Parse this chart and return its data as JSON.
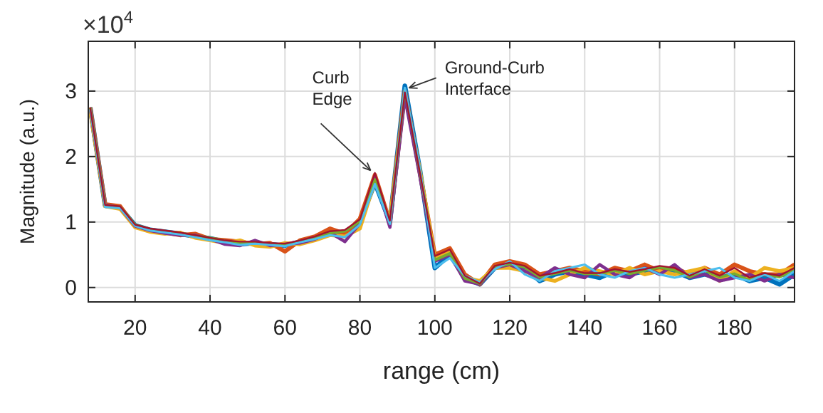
{
  "chart_data": {
    "type": "line",
    "xlabel": "range (cm)",
    "ylabel": "Magnitude (a.u.)",
    "x": [
      8,
      12,
      16,
      20,
      24,
      28,
      32,
      36,
      40,
      44,
      48,
      52,
      56,
      60,
      64,
      68,
      72,
      76,
      80,
      84,
      88,
      92,
      96,
      100,
      104,
      108,
      112,
      116,
      120,
      124,
      128,
      132,
      136,
      140,
      144,
      148,
      152,
      156,
      160,
      164,
      168,
      172,
      176,
      180,
      184,
      188,
      192,
      196
    ],
    "xlim": [
      7.5,
      196
    ],
    "ylim": [
      -0.22,
      3.76
    ],
    "xticks": [
      20,
      40,
      60,
      80,
      100,
      120,
      140,
      160,
      180
    ],
    "yticks": [
      0,
      1,
      2,
      3
    ],
    "grid": true,
    "marker": "none",
    "line_style": "solid",
    "series": [
      {
        "color": "#0072bd",
        "values": [
          2.75,
          1.25,
          1.22,
          0.95,
          0.88,
          0.85,
          0.82,
          0.78,
          0.75,
          0.7,
          0.66,
          0.68,
          0.66,
          0.64,
          0.7,
          0.75,
          0.82,
          0.8,
          1.0,
          1.6,
          1.0,
          3.08,
          1.8,
          0.3,
          0.5,
          0.15,
          0.05,
          0.3,
          0.35,
          0.3,
          0.1,
          0.2,
          0.25,
          0.2,
          0.15,
          0.25,
          0.2,
          0.25,
          0.3,
          0.25,
          0.15,
          0.2,
          0.15,
          0.2,
          0.1,
          0.15,
          0.05,
          0.2
        ]
      },
      {
        "color": "#d95319",
        "values": [
          2.75,
          1.27,
          1.24,
          0.93,
          0.86,
          0.84,
          0.8,
          0.82,
          0.74,
          0.72,
          0.7,
          0.66,
          0.68,
          0.55,
          0.72,
          0.78,
          0.9,
          0.82,
          1.05,
          1.72,
          1.0,
          3.0,
          1.75,
          0.5,
          0.6,
          0.2,
          0.05,
          0.35,
          0.4,
          0.35,
          0.2,
          0.25,
          0.3,
          0.25,
          0.2,
          0.3,
          0.25,
          0.35,
          0.25,
          0.3,
          0.2,
          0.3,
          0.2,
          0.35,
          0.25,
          0.2,
          0.2,
          0.35
        ]
      },
      {
        "color": "#edb120",
        "values": [
          2.7,
          1.24,
          1.2,
          0.92,
          0.85,
          0.82,
          0.84,
          0.76,
          0.72,
          0.68,
          0.72,
          0.64,
          0.62,
          0.68,
          0.66,
          0.72,
          0.8,
          0.78,
          0.9,
          1.62,
          1.02,
          2.95,
          1.8,
          0.45,
          0.55,
          0.15,
          0.1,
          0.3,
          0.3,
          0.25,
          0.15,
          0.1,
          0.2,
          0.3,
          0.25,
          0.2,
          0.3,
          0.2,
          0.25,
          0.2,
          0.25,
          0.3,
          0.1,
          0.25,
          0.15,
          0.3,
          0.25,
          0.3
        ]
      },
      {
        "color": "#7e2f8e",
        "values": [
          2.75,
          1.26,
          1.22,
          0.94,
          0.87,
          0.83,
          0.8,
          0.8,
          0.74,
          0.66,
          0.64,
          0.72,
          0.64,
          0.66,
          0.68,
          0.74,
          0.84,
          0.7,
          0.98,
          1.68,
          0.92,
          2.9,
          1.7,
          0.4,
          0.5,
          0.1,
          0.05,
          0.3,
          0.35,
          0.25,
          0.15,
          0.3,
          0.2,
          0.15,
          0.35,
          0.2,
          0.15,
          0.3,
          0.2,
          0.35,
          0.15,
          0.2,
          0.1,
          0.15,
          0.2,
          0.1,
          0.2,
          0.15
        ]
      },
      {
        "color": "#77ac30",
        "values": [
          2.75,
          1.25,
          1.23,
          0.96,
          0.89,
          0.86,
          0.83,
          0.79,
          0.76,
          0.71,
          0.67,
          0.69,
          0.67,
          0.65,
          0.71,
          0.76,
          0.83,
          0.86,
          1.01,
          1.65,
          0.98,
          3.02,
          1.78,
          0.42,
          0.52,
          0.14,
          0.06,
          0.31,
          0.36,
          0.31,
          0.16,
          0.21,
          0.26,
          0.21,
          0.21,
          0.26,
          0.21,
          0.26,
          0.31,
          0.26,
          0.16,
          0.26,
          0.16,
          0.21,
          0.11,
          0.21,
          0.16,
          0.26
        ]
      },
      {
        "color": "#4dbeee",
        "values": [
          2.72,
          1.23,
          1.21,
          0.94,
          0.87,
          0.84,
          0.81,
          0.77,
          0.72,
          0.69,
          0.65,
          0.67,
          0.65,
          0.63,
          0.69,
          0.74,
          0.8,
          0.77,
          0.96,
          1.58,
          0.97,
          3.05,
          1.82,
          0.3,
          0.45,
          0.18,
          0.08,
          0.28,
          0.4,
          0.2,
          0.1,
          0.25,
          0.3,
          0.35,
          0.2,
          0.15,
          0.25,
          0.3,
          0.2,
          0.15,
          0.2,
          0.25,
          0.3,
          0.15,
          0.1,
          0.2,
          0.1,
          0.25
        ]
      },
      {
        "color": "#a2142f",
        "values": [
          2.75,
          1.26,
          1.24,
          0.96,
          0.9,
          0.87,
          0.84,
          0.8,
          0.76,
          0.72,
          0.7,
          0.7,
          0.68,
          0.67,
          0.72,
          0.78,
          0.86,
          0.88,
          1.04,
          1.75,
          1.02,
          2.98,
          1.76,
          0.48,
          0.58,
          0.18,
          0.06,
          0.33,
          0.38,
          0.33,
          0.18,
          0.22,
          0.28,
          0.22,
          0.22,
          0.28,
          0.24,
          0.28,
          0.33,
          0.3,
          0.18,
          0.28,
          0.18,
          0.3,
          0.15,
          0.22,
          0.18,
          0.3
        ]
      }
    ],
    "annotations": [
      "×10$^{4}$",
      {
        "text": "Curb Edge",
        "x": 84,
        "y": 1.7
      },
      {
        "text": "Ground-Curb Interface",
        "x": 92,
        "y": 3.05
      }
    ]
  }
}
